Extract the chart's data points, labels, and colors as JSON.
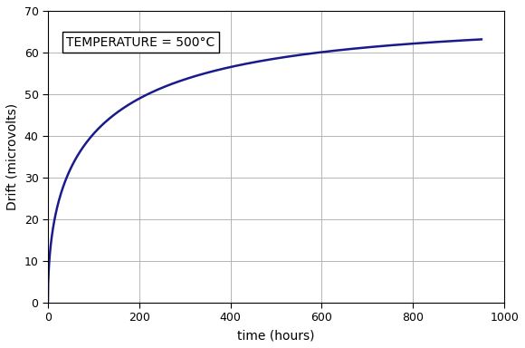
{
  "title": "",
  "xlabel": "time (hours)",
  "ylabel": "Drift (microvolts)",
  "annotation": "TEMPERATURE = 500°C",
  "xlim": [
    0,
    1000
  ],
  "ylim": [
    0,
    70
  ],
  "xticks": [
    0,
    200,
    400,
    600,
    800,
    1000
  ],
  "yticks": [
    0,
    10,
    20,
    30,
    40,
    50,
    60,
    70
  ],
  "line_color": "#1a1a8c",
  "line_width": 1.8,
  "background_color": "#ffffff",
  "grid_color": "#aaaaaa",
  "curve_asymptote": 67.0,
  "curve_k": 10.78,
  "annotation_fontsize": 10,
  "axis_label_fontsize": 10,
  "tick_fontsize": 9
}
